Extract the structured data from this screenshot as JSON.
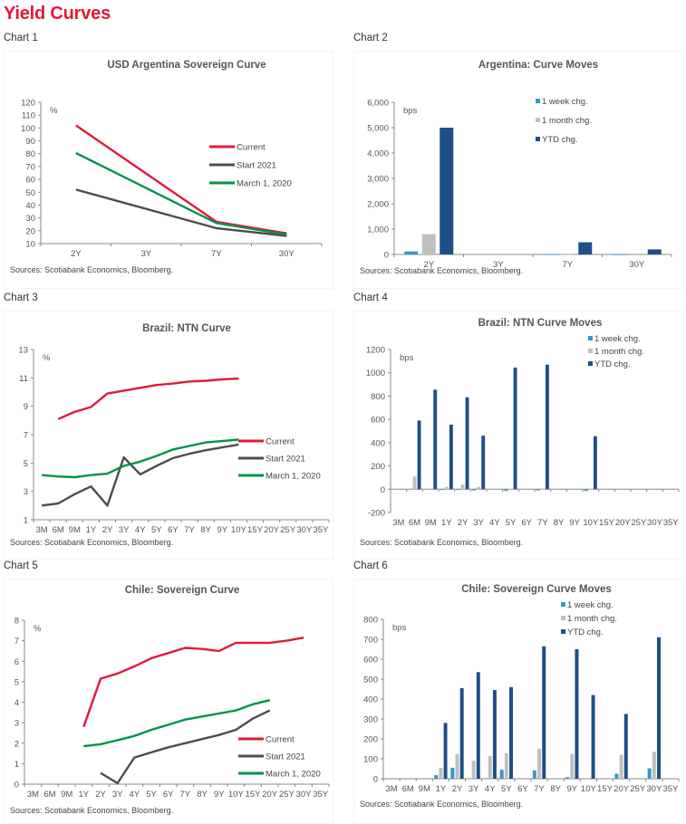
{
  "page": {
    "title": "Yield Curves"
  },
  "colors": {
    "current": "#e31837",
    "start2021": "#4d4d4d",
    "march2020": "#00934a",
    "week": "#3399cc",
    "month": "#bfbfbf",
    "ytd": "#1f4e89",
    "title": "#e31837"
  },
  "chart_data": [
    {
      "id": "chart1",
      "label": "Chart 1",
      "type": "line",
      "title": "USD Argentina Sovereign Curve",
      "unit": "%",
      "categories": [
        "2Y",
        "3Y",
        "7Y",
        "30Y"
      ],
      "ylim": [
        10,
        120
      ],
      "yticks": [
        10,
        20,
        30,
        40,
        50,
        60,
        70,
        80,
        90,
        100,
        110,
        120
      ],
      "series": [
        {
          "name": "Current",
          "color_key": "current",
          "values": [
            102,
            null,
            27,
            18
          ]
        },
        {
          "name": "Start 2021",
          "color_key": "start2021",
          "values": [
            52,
            null,
            22,
            16
          ]
        },
        {
          "name": "March 1, 2020",
          "color_key": "march2020",
          "values": [
            80.5,
            null,
            26,
            17
          ]
        }
      ],
      "legend": "right",
      "source": "Sources: Scotiabank Economics, Bloomberg."
    },
    {
      "id": "chart2",
      "label": "Chart 2",
      "type": "bar",
      "title": "Argentina: Curve Moves",
      "unit": "bps",
      "categories": [
        "2Y",
        "3Y",
        "7Y",
        "30Y"
      ],
      "ylim": [
        0,
        6000
      ],
      "yticks": [
        0,
        1000,
        2000,
        3000,
        4000,
        5000,
        6000
      ],
      "ytick_labels": [
        "0",
        "1,000",
        "2,000",
        "3,000",
        "4,000",
        "5,000",
        "6,000"
      ],
      "series": [
        {
          "name": "1 week chg.",
          "color_key": "week",
          "values": [
            120,
            0,
            10,
            5
          ]
        },
        {
          "name": "1 month chg.",
          "color_key": "month",
          "values": [
            800,
            0,
            5,
            0
          ]
        },
        {
          "name": "YTD chg.",
          "color_key": "ytd",
          "values": [
            5000,
            0,
            480,
            200
          ]
        }
      ],
      "legend": "top-right",
      "source": "Sources: Scotiabank Economics, Bloomberg."
    },
    {
      "id": "chart3",
      "label": "Chart 3",
      "type": "line",
      "title": "Brazil: NTN Curve",
      "unit": "%",
      "categories": [
        "3M",
        "6M",
        "9M",
        "1Y",
        "2Y",
        "3Y",
        "4Y",
        "5Y",
        "6Y",
        "7Y",
        "8Y",
        "9Y",
        "10Y",
        "15Y",
        "20Y",
        "25Y",
        "30Y",
        "35Y"
      ],
      "ylim": [
        1,
        13
      ],
      "yticks": [
        1,
        3,
        5,
        7,
        9,
        11,
        13
      ],
      "series": [
        {
          "name": "Current",
          "color_key": "current",
          "values": [
            null,
            8.1,
            8.6,
            8.95,
            9.9,
            10.1,
            10.3,
            10.5,
            10.6,
            10.75,
            10.8,
            10.9,
            10.95,
            null,
            null,
            null,
            null,
            null
          ]
        },
        {
          "name": "Start 2021",
          "color_key": "start2021",
          "values": [
            2.0,
            2.15,
            2.8,
            3.35,
            2.0,
            5.4,
            4.2,
            4.8,
            5.35,
            5.65,
            5.9,
            6.1,
            6.3,
            null,
            null,
            null,
            null,
            null
          ]
        },
        {
          "name": "March 1, 2020",
          "color_key": "march2020",
          "values": [
            4.15,
            4.05,
            4.0,
            4.15,
            4.25,
            4.8,
            5.1,
            5.5,
            5.95,
            6.2,
            6.45,
            6.55,
            6.65,
            null,
            null,
            null,
            null,
            null
          ]
        }
      ],
      "legend": "right",
      "source": "Sources: Scotiabank Economics, Bloomberg."
    },
    {
      "id": "chart4",
      "label": "Chart 4",
      "type": "bar",
      "title": "Brazil: NTN Curve Moves",
      "unit": "bps",
      "categories": [
        "3M",
        "6M",
        "9M",
        "1Y",
        "2Y",
        "3Y",
        "4Y",
        "5Y",
        "6Y",
        "7Y",
        "8Y",
        "9Y",
        "10Y",
        "15Y",
        "20Y",
        "25Y",
        "30Y",
        "35Y"
      ],
      "ylim": [
        -200,
        1200
      ],
      "yticks": [
        -200,
        0,
        200,
        400,
        600,
        800,
        1000,
        1200
      ],
      "ytick_labels": [
        "-200",
        "0",
        "200",
        "400",
        "600",
        "800",
        "1000",
        "1200"
      ],
      "series": [
        {
          "name": "1 week chg.",
          "color_key": "week",
          "values": [
            0,
            0,
            0,
            -5,
            -5,
            -10,
            0,
            -15,
            0,
            -10,
            0,
            0,
            -15,
            0,
            0,
            0,
            0,
            0
          ]
        },
        {
          "name": "1 month chg.",
          "color_key": "month",
          "values": [
            0,
            110,
            0,
            20,
            40,
            20,
            0,
            5,
            0,
            5,
            0,
            0,
            5,
            0,
            0,
            0,
            0,
            0
          ]
        },
        {
          "name": "YTD chg.",
          "color_key": "ytd",
          "values": [
            0,
            590,
            855,
            555,
            790,
            460,
            0,
            1045,
            0,
            1070,
            0,
            0,
            455,
            0,
            0,
            0,
            0,
            0
          ]
        }
      ],
      "legend": "top-right",
      "source": "Sources: Scotiabank Economics, Bloomberg."
    },
    {
      "id": "chart5",
      "label": "Chart 5",
      "type": "line",
      "title": "Chile: Sovereign Curve",
      "unit": "%",
      "categories": [
        "3M",
        "6M",
        "9M",
        "1Y",
        "2Y",
        "3Y",
        "4Y",
        "5Y",
        "6Y",
        "7Y",
        "8Y",
        "9Y",
        "10Y",
        "15Y",
        "20Y",
        "25Y",
        "30Y",
        "35Y"
      ],
      "ylim": [
        0,
        8
      ],
      "yticks": [
        0,
        1,
        2,
        3,
        4,
        5,
        6,
        7,
        8
      ],
      "series": [
        {
          "name": "Current",
          "color_key": "current",
          "values": [
            null,
            null,
            null,
            2.8,
            5.15,
            5.4,
            5.75,
            6.15,
            6.4,
            6.65,
            6.6,
            6.5,
            6.9,
            6.9,
            6.9,
            7.0,
            7.15,
            null
          ]
        },
        {
          "name": "Start 2021",
          "color_key": "start2021",
          "values": [
            null,
            null,
            null,
            null,
            0.55,
            0.05,
            1.3,
            1.55,
            1.8,
            2.0,
            2.2,
            2.4,
            2.65,
            3.2,
            3.6,
            null,
            null,
            null
          ]
        },
        {
          "name": "March 1, 2020",
          "color_key": "march2020",
          "values": [
            null,
            null,
            null,
            1.85,
            1.95,
            2.15,
            2.35,
            2.65,
            2.9,
            3.15,
            3.3,
            3.45,
            3.6,
            3.9,
            4.1,
            null,
            null,
            null
          ]
        }
      ],
      "legend": "bottom-right",
      "source": "Sources: Scotiabank Economics, Bloomberg."
    },
    {
      "id": "chart6",
      "label": "Chart 6",
      "type": "bar",
      "title": "Chile: Sovereign Curve Moves",
      "unit": "bps",
      "categories": [
        "3M",
        "6M",
        "9M",
        "1Y",
        "2Y",
        "3Y",
        "4Y",
        "5Y",
        "6Y",
        "7Y",
        "8Y",
        "9Y",
        "10Y",
        "15Y",
        "20Y",
        "25Y",
        "30Y",
        "35Y"
      ],
      "ylim": [
        0,
        800
      ],
      "yticks": [
        0,
        100,
        200,
        300,
        400,
        500,
        600,
        700,
        800
      ],
      "ytick_labels": [
        "0",
        "100",
        "200",
        "300",
        "400",
        "500",
        "600",
        "700",
        "800"
      ],
      "series": [
        {
          "name": "1 week chg.",
          "color_key": "week",
          "values": [
            0,
            0,
            0,
            18,
            55,
            0,
            0,
            45,
            0,
            42,
            0,
            8,
            0,
            0,
            25,
            0,
            52,
            0
          ]
        },
        {
          "name": "1 month chg.",
          "color_key": "month",
          "values": [
            0,
            0,
            0,
            55,
            125,
            90,
            115,
            128,
            0,
            150,
            0,
            125,
            0,
            0,
            120,
            0,
            135,
            0
          ]
        },
        {
          "name": "YTD chg.",
          "color_key": "ytd",
          "values": [
            0,
            0,
            0,
            280,
            455,
            535,
            445,
            460,
            0,
            665,
            0,
            650,
            420,
            0,
            325,
            0,
            710,
            0
          ]
        }
      ],
      "legend": "top-right",
      "source": "Sources: Scotiabank Economics, Bloomberg."
    }
  ]
}
